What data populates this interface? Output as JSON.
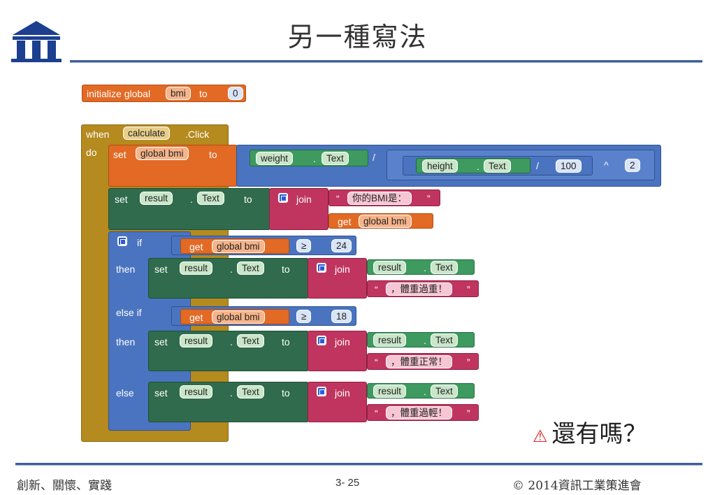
{
  "slide": {
    "title": "另一種寫法",
    "footer_left": "創新、關懷、實踐",
    "footer_page": "3- 25",
    "footer_right": "© 2014資訊工業策進會",
    "note": "還有嗎？",
    "note_icon": "warning-triangle-icon"
  },
  "blocks": {
    "init": {
      "label1": "initialize global",
      "var": "bmi",
      "label2": "to",
      "value": "0"
    },
    "event": {
      "when": "when",
      "component": "calculate",
      "event": ".Click",
      "do": "do"
    },
    "set1": {
      "set": "set",
      "var": "global bmi",
      "to": "to",
      "w_comp": "weight",
      "dot": ".",
      "w_prop": "Text",
      "div": "/",
      "h_comp": "height",
      "h_prop": "Text",
      "div2": "/",
      "hundred": "100",
      "pow": "^",
      "two": "2"
    },
    "set2": {
      "set": "set",
      "comp": "result",
      "dot": ".",
      "prop": "Text",
      "to": "to",
      "join": "join",
      "quote_open": "“",
      "str": "你的BMI是：",
      "quote_close": "”",
      "get": "get",
      "get_var": "global bmi"
    },
    "if": {
      "if": "if",
      "then": "then",
      "elseif": "else if",
      "else": "else",
      "get": "get",
      "var": "global bmi",
      "ge": "≥",
      "v24": "24",
      "v18": "18",
      "set": "set",
      "comp": "result",
      "dot": ".",
      "prop": "Text",
      "to": "to",
      "join": "join",
      "q1": "“",
      "q2": "”",
      "s1": "，體重過重！",
      "s2": "，體重正常！",
      "s3": "，體重過輕！"
    }
  }
}
